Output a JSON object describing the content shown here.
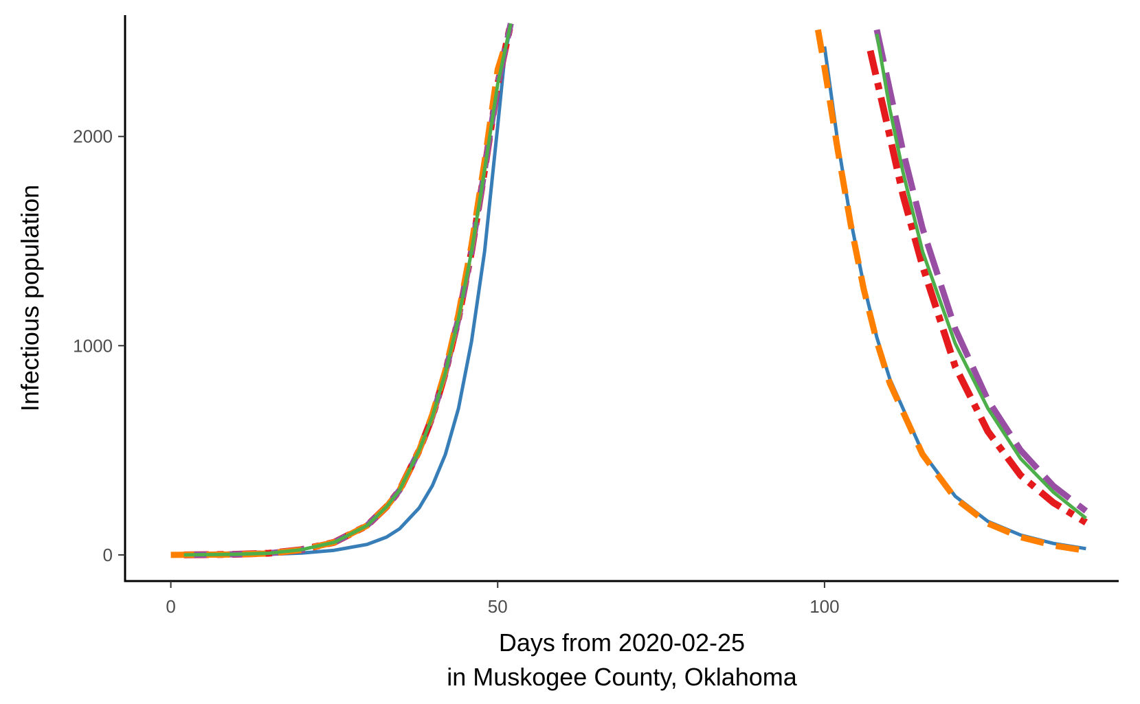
{
  "chart_data": {
    "type": "line",
    "title": "",
    "xlabel_lines": [
      "Days from 2020-02-25",
      "in Muskogee County, Oklahoma"
    ],
    "ylabel": "Infectious population",
    "xlim": [
      -7,
      145
    ],
    "ylim": [
      -125,
      2580
    ],
    "x_ticks": [
      0,
      50,
      100
    ],
    "x_tick_labels": [
      "0",
      "50",
      "100"
    ],
    "y_ticks": [
      0,
      1000,
      2000
    ],
    "y_tick_labels": [
      "0",
      "1000",
      "2000"
    ],
    "grid": false,
    "legend": "none",
    "series": [
      {
        "color": "#377eb8",
        "line_style": "solid",
        "segments": [
          [
            [
              2,
              0
            ],
            [
              10,
              1
            ],
            [
              15,
              3
            ],
            [
              20,
              9
            ],
            [
              25,
              22
            ],
            [
              30,
              50
            ],
            [
              33,
              85
            ],
            [
              35,
              125
            ],
            [
              38,
              225
            ],
            [
              40,
              330
            ],
            [
              42,
              480
            ],
            [
              44,
              700
            ],
            [
              46,
              1020
            ],
            [
              48,
              1450
            ],
            [
              50,
              2050
            ],
            [
              51,
              2360
            ],
            [
              52,
              2540
            ]
          ],
          [
            [
              100,
              2430
            ],
            [
              102,
              1980
            ],
            [
              104,
              1600
            ],
            [
              106,
              1290
            ],
            [
              108,
              1040
            ],
            [
              110,
              840
            ],
            [
              115,
              490
            ],
            [
              120,
              280
            ],
            [
              125,
              160
            ],
            [
              130,
              95
            ],
            [
              135,
              55
            ],
            [
              140,
              30
            ]
          ]
        ]
      },
      {
        "color": "#e41a1c",
        "line_style": "dashdot",
        "segments": [
          [
            [
              2,
              0
            ],
            [
              10,
              3
            ],
            [
              15,
              8
            ],
            [
              20,
              25
            ],
            [
              25,
              60
            ],
            [
              30,
              140
            ],
            [
              33,
              230
            ],
            [
              35,
              310
            ],
            [
              38,
              500
            ],
            [
              40,
              660
            ],
            [
              42,
              870
            ],
            [
              44,
              1130
            ],
            [
              46,
              1450
            ],
            [
              48,
              1840
            ],
            [
              50,
              2250
            ],
            [
              52,
              2540
            ]
          ],
          [
            [
              107,
              2410
            ],
            [
              110,
              2000
            ],
            [
              112,
              1720
            ],
            [
              115,
              1380
            ],
            [
              120,
              900
            ],
            [
              125,
              590
            ],
            [
              130,
              380
            ],
            [
              135,
              250
            ],
            [
              140,
              155
            ]
          ]
        ]
      },
      {
        "color": "#984ea3",
        "line_style": "longdash",
        "segments": [
          [
            [
              2,
              0
            ],
            [
              10,
              3
            ],
            [
              15,
              8
            ],
            [
              20,
              25
            ],
            [
              25,
              60
            ],
            [
              30,
              140
            ],
            [
              33,
              230
            ],
            [
              35,
              310
            ],
            [
              38,
              500
            ],
            [
              40,
              660
            ],
            [
              42,
              870
            ],
            [
              44,
              1130
            ],
            [
              46,
              1450
            ],
            [
              48,
              1840
            ],
            [
              50,
              2250
            ],
            [
              52,
              2540
            ]
          ],
          [
            [
              108,
              2510
            ],
            [
              110,
              2220
            ],
            [
              112,
              1930
            ],
            [
              115,
              1560
            ],
            [
              120,
              1080
            ],
            [
              125,
              740
            ],
            [
              130,
              500
            ],
            [
              135,
              330
            ],
            [
              140,
              210
            ]
          ]
        ]
      },
      {
        "color": "#ff7f00",
        "line_style": "dashed",
        "segments": [
          [
            [
              0,
              0
            ],
            [
              10,
              2
            ],
            [
              15,
              7
            ],
            [
              20,
              24
            ],
            [
              25,
              60
            ],
            [
              30,
              140
            ],
            [
              33,
              230
            ],
            [
              35,
              310
            ],
            [
              38,
              500
            ],
            [
              40,
              670
            ],
            [
              42,
              880
            ],
            [
              44,
              1150
            ],
            [
              46,
              1480
            ],
            [
              48,
              1880
            ],
            [
              50,
              2320
            ],
            [
              51,
              2420
            ]
          ],
          [
            [
              99,
              2510
            ],
            [
              100,
              2330
            ],
            [
              102,
              1940
            ],
            [
              104,
              1580
            ],
            [
              106,
              1270
            ],
            [
              108,
              1020
            ],
            [
              110,
              820
            ],
            [
              115,
              480
            ],
            [
              120,
              270
            ],
            [
              125,
              150
            ],
            [
              130,
              85
            ],
            [
              135,
              45
            ],
            [
              140,
              20
            ]
          ]
        ]
      },
      {
        "color": "#4daf4a",
        "line_style": "solid",
        "segments": [
          [
            [
              2,
              0
            ],
            [
              10,
              3
            ],
            [
              15,
              8
            ],
            [
              20,
              25
            ],
            [
              25,
              60
            ],
            [
              30,
              140
            ],
            [
              33,
              230
            ],
            [
              35,
              310
            ],
            [
              38,
              500
            ],
            [
              40,
              660
            ],
            [
              42,
              870
            ],
            [
              44,
              1130
            ],
            [
              46,
              1450
            ],
            [
              48,
              1840
            ],
            [
              50,
              2250
            ],
            [
              52,
              2540
            ]
          ],
          [
            [
              108,
              2490
            ],
            [
              110,
              2130
            ],
            [
              112,
              1830
            ],
            [
              115,
              1450
            ],
            [
              120,
              1010
            ],
            [
              125,
              700
            ],
            [
              130,
              460
            ],
            [
              135,
              300
            ],
            [
              140,
              175
            ]
          ]
        ]
      }
    ]
  }
}
